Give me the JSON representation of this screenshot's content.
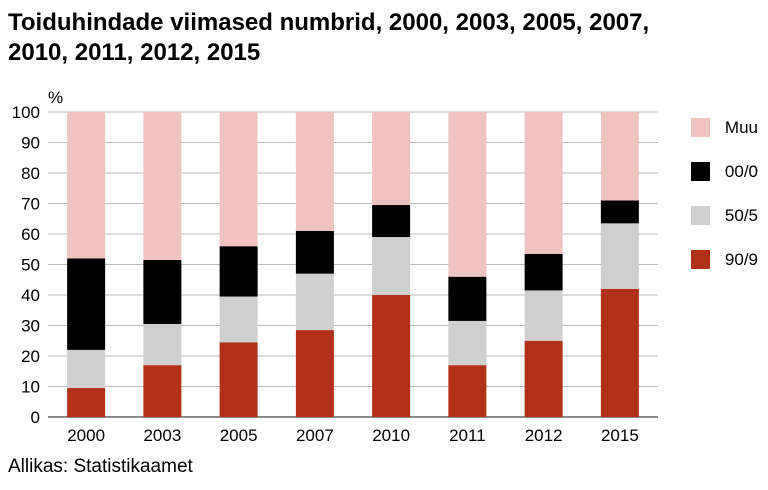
{
  "title": "Toiduhindade viimased numbrid, 2000, 2003, 2005, 2007, 2010, 2011, 2012, 2015",
  "source": "Allikas: Statistikaamet",
  "chart_data": {
    "type": "bar",
    "stacked": true,
    "ylabel": "%",
    "ylim": [
      0,
      100
    ],
    "yticks": [
      0,
      10,
      20,
      30,
      40,
      50,
      60,
      70,
      80,
      90,
      100
    ],
    "grid": true,
    "legend_position": "right",
    "categories": [
      "2000",
      "2003",
      "2005",
      "2007",
      "2010",
      "2011",
      "2012",
      "2015"
    ],
    "series": [
      {
        "name": "90/9",
        "color": "#b03018",
        "values": [
          9.5,
          17,
          24.5,
          28.5,
          40,
          17,
          25,
          42
        ]
      },
      {
        "name": "50/5",
        "color": "#cfcfcf",
        "values": [
          12.5,
          13.5,
          15,
          18.5,
          19,
          14.5,
          16.5,
          21.5
        ]
      },
      {
        "name": "00/0",
        "color": "#000000",
        "values": [
          30,
          21,
          16.5,
          14,
          10.5,
          14.5,
          12,
          7.5
        ]
      },
      {
        "name": "Muu",
        "color": "#efc3bf",
        "values": [
          48,
          48.5,
          44,
          39,
          30.5,
          54,
          46.5,
          29
        ]
      }
    ]
  }
}
